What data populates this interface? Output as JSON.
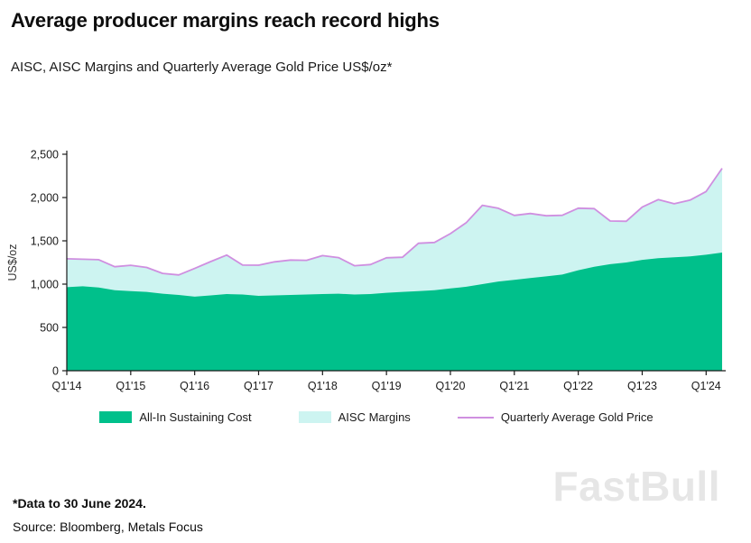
{
  "page": {
    "title": "Average producer margins reach record highs",
    "subtitle": "AISC, AISC Margins and Quarterly Average Gold Price US$/oz*",
    "footnote": "*Data to 30 June 2024.",
    "source": "Source: Bloomberg, Metals Focus",
    "watermark": "FastBull"
  },
  "chart_data": {
    "type": "area",
    "title": "Average producer margins reach record highs",
    "subtitle": "AISC, AISC Margins and Quarterly Average Gold Price US$/oz*",
    "xlabel": "",
    "ylabel": "US$/oz",
    "ylim": [
      0,
      2500
    ],
    "y_ticks": [
      0,
      500,
      1000,
      1500,
      2000,
      2500
    ],
    "x_tick_labels": [
      "Q1'14",
      "Q1'15",
      "Q1'16",
      "Q1'17",
      "Q1'18",
      "Q1'19",
      "Q1'20",
      "Q1'21",
      "Q1'22",
      "Q1'23",
      "Q1'24"
    ],
    "grid": false,
    "legend_position": "bottom",
    "categories": [
      "Q1'14",
      "Q2'14",
      "Q3'14",
      "Q4'14",
      "Q1'15",
      "Q2'15",
      "Q3'15",
      "Q4'15",
      "Q1'16",
      "Q2'16",
      "Q3'16",
      "Q4'16",
      "Q1'17",
      "Q2'17",
      "Q3'17",
      "Q4'17",
      "Q1'18",
      "Q2'18",
      "Q3'18",
      "Q4'18",
      "Q1'19",
      "Q2'19",
      "Q3'19",
      "Q4'19",
      "Q1'20",
      "Q2'20",
      "Q3'20",
      "Q4'20",
      "Q1'21",
      "Q2'21",
      "Q3'21",
      "Q4'21",
      "Q1'22",
      "Q2'22",
      "Q3'22",
      "Q4'22",
      "Q1'23",
      "Q2'23",
      "Q3'23",
      "Q4'23",
      "Q1'24",
      "Q2'24"
    ],
    "series": [
      {
        "name": "All-In Sustaining Cost",
        "type": "area",
        "values": [
          965,
          975,
          960,
          930,
          920,
          910,
          890,
          875,
          855,
          870,
          885,
          880,
          865,
          870,
          875,
          880,
          885,
          890,
          880,
          885,
          900,
          910,
          920,
          930,
          950,
          970,
          1000,
          1030,
          1050,
          1070,
          1090,
          1110,
          1160,
          1200,
          1230,
          1250,
          1280,
          1300,
          1310,
          1320,
          1340,
          1365
        ]
      },
      {
        "name": "AISC Margins",
        "type": "area-stacked",
        "values": [
          328,
          313,
          322,
          271,
          298,
          283,
          234,
          231,
          326,
          390,
          450,
          340,
          354,
          387,
          403,
          395,
          444,
          416,
          333,
          341,
          404,
          400,
          552,
          551,
          633,
          741,
          910,
          846,
          744,
          746,
          700,
          685,
          717,
          672,
          499,
          476,
          610,
          676,
          618,
          651,
          730,
          973
        ]
      },
      {
        "name": "Quarterly Average Gold Price",
        "type": "line",
        "values": [
          1293,
          1288,
          1282,
          1201,
          1218,
          1193,
          1124,
          1106,
          1181,
          1260,
          1335,
          1220,
          1219,
          1257,
          1278,
          1275,
          1329,
          1306,
          1213,
          1226,
          1304,
          1310,
          1472,
          1481,
          1583,
          1711,
          1910,
          1876,
          1794,
          1816,
          1790,
          1795,
          1877,
          1872,
          1729,
          1726,
          1890,
          1976,
          1928,
          1971,
          2070,
          2338
        ]
      }
    ],
    "colors": {
      "aisc_fill": "#00C08B",
      "margins_fill": "#CDF4F1",
      "gold_line": "#CF8FE0",
      "axis": "#1a1a1a"
    }
  }
}
